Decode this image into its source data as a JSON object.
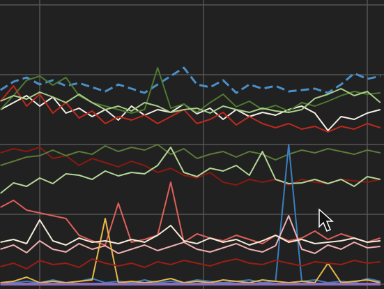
{
  "chart_data": {
    "type": "line",
    "x": [
      0.76,
      0.84,
      0.92,
      1.0,
      1.08,
      1.16,
      1.24,
      1.32,
      1.4,
      1.48,
      1.56,
      1.64,
      1.72,
      1.8,
      1.88,
      1.96,
      2.04,
      2.12,
      2.2,
      2.28,
      2.36,
      2.44,
      2.52,
      2.6,
      2.68,
      2.76,
      2.84,
      2.92,
      3.0,
      3.08
    ],
    "xlim": [
      0.7574,
      3.102
    ],
    "xticks": [
      1,
      2,
      3
    ],
    "ylim": [
      -0.07,
      4.07
    ],
    "yticks": [
      0,
      1,
      2,
      3,
      4
    ],
    "grid": true,
    "background": "#212121",
    "grid_color": "#555555",
    "series": [
      {
        "color": "#4a90c8",
        "dashed": true,
        "width": 3,
        "values": [
          2.78,
          2.9,
          2.96,
          2.86,
          2.92,
          2.84,
          2.88,
          2.82,
          2.76,
          2.86,
          2.8,
          2.74,
          2.86,
          2.98,
          3.1,
          2.86,
          2.82,
          2.92,
          2.74,
          2.86,
          2.8,
          2.84,
          2.76,
          2.78,
          2.8,
          2.74,
          2.86,
          3.02,
          2.94,
          2.98
        ]
      },
      {
        "color": "#f5f0e6",
        "values": [
          2.5,
          2.6,
          2.7,
          2.55,
          2.68,
          2.45,
          2.52,
          2.4,
          2.5,
          2.35,
          2.55,
          2.42,
          2.5,
          2.46,
          2.58,
          2.44,
          2.52,
          2.36,
          2.5,
          2.4,
          2.46,
          2.42,
          2.5,
          2.55,
          2.45,
          2.2,
          2.4,
          2.36,
          2.45,
          2.5
        ]
      },
      {
        "color": "#c0281c",
        "values": [
          2.62,
          2.84,
          2.55,
          2.72,
          2.45,
          2.6,
          2.38,
          2.48,
          2.3,
          2.4,
          2.35,
          2.42,
          2.3,
          2.4,
          2.5,
          2.3,
          2.36,
          2.46,
          2.28,
          2.4,
          2.3,
          2.24,
          2.3,
          2.22,
          2.26,
          2.18,
          2.26,
          2.22,
          2.3,
          2.24
        ]
      },
      {
        "color": "#4e7a2e",
        "values": [
          2.5,
          2.7,
          2.92,
          2.98,
          2.85,
          2.96,
          2.7,
          2.6,
          2.55,
          2.5,
          2.45,
          2.5,
          3.1,
          2.52,
          2.58,
          2.46,
          2.6,
          2.72,
          2.54,
          2.62,
          2.5,
          2.56,
          2.48,
          2.6,
          2.55,
          2.62,
          2.7,
          2.76,
          2.72,
          2.74
        ]
      },
      {
        "color": "#a8cf88",
        "values": [
          2.62,
          2.7,
          2.65,
          2.75,
          2.68,
          2.6,
          2.72,
          2.6,
          2.5,
          2.55,
          2.48,
          2.6,
          2.55,
          2.46,
          2.5,
          2.52,
          2.45,
          2.55,
          2.5,
          2.46,
          2.52,
          2.48,
          2.46,
          2.5,
          2.66,
          2.72,
          2.8,
          2.7,
          2.76,
          2.6
        ]
      },
      {
        "color": "#8a1a10",
        "values": [
          1.88,
          1.94,
          1.9,
          1.96,
          1.8,
          1.84,
          1.7,
          1.8,
          1.74,
          1.68,
          1.76,
          1.7,
          1.6,
          1.66,
          1.56,
          1.52,
          1.6,
          1.46,
          1.42,
          1.5,
          1.46,
          1.5,
          1.42,
          1.5,
          1.46,
          1.44,
          1.5,
          1.48,
          1.46,
          1.5
        ]
      },
      {
        "color": "#5c7a3a",
        "values": [
          1.7,
          1.76,
          1.82,
          1.84,
          1.92,
          1.84,
          1.9,
          1.86,
          1.98,
          1.9,
          1.96,
          1.92,
          2.0,
          1.86,
          1.94,
          1.8,
          1.86,
          1.9,
          1.82,
          1.9,
          1.86,
          1.78,
          1.86,
          1.92,
          1.88,
          1.94,
          1.9,
          1.86,
          1.92,
          1.88
        ]
      },
      {
        "color": "#b5d698",
        "values": [
          1.3,
          1.45,
          1.4,
          1.52,
          1.44,
          1.58,
          1.56,
          1.5,
          1.62,
          1.55,
          1.6,
          1.58,
          1.7,
          1.96,
          1.6,
          1.54,
          1.66,
          1.62,
          1.7,
          1.56,
          1.9,
          1.5,
          1.44,
          1.45,
          1.5,
          1.44,
          1.5,
          1.4,
          1.54,
          1.5
        ]
      },
      {
        "color": "#e0605a",
        "values": [
          1.1,
          1.2,
          1.06,
          1.02,
          0.98,
          0.94,
          0.7,
          0.62,
          0.56,
          1.16,
          0.6,
          0.64,
          0.7,
          1.46,
          0.6,
          0.72,
          0.66,
          0.62,
          0.7,
          0.64,
          0.58,
          0.7,
          0.62,
          0.66,
          0.76,
          0.64,
          0.72,
          0.66,
          0.6,
          0.66
        ]
      },
      {
        "color": "#3a80c0",
        "values": [
          0.02,
          0.02,
          0.04,
          0.02,
          0.06,
          0.02,
          0.04,
          0.08,
          0.02,
          0.04,
          0.02,
          0.06,
          0.02,
          0.04,
          0.02,
          0.06,
          0.04,
          0.02,
          0.04,
          0.06,
          0.02,
          0.04,
          2.0,
          0.04,
          0.06,
          0.02,
          0.04,
          0.02,
          0.08,
          0.04
        ]
      },
      {
        "color": "#f0b0b0",
        "values": [
          0.5,
          0.56,
          0.45,
          0.62,
          0.5,
          0.46,
          0.58,
          0.5,
          0.55,
          0.44,
          0.5,
          0.56,
          0.48,
          0.54,
          0.6,
          0.5,
          0.46,
          0.52,
          0.58,
          0.5,
          0.46,
          0.55,
          0.98,
          0.5,
          0.44,
          0.56,
          0.5,
          0.6,
          0.52,
          0.54
        ]
      },
      {
        "color": "#e8b84a",
        "values": [
          0.02,
          0.04,
          0.1,
          0.02,
          0.04,
          0.02,
          0.04,
          0.06,
          0.94,
          0.02,
          0.04,
          0.02,
          0.04,
          0.08,
          0.02,
          0.04,
          0.02,
          0.06,
          0.04,
          0.02,
          0.06,
          0.04,
          0.02,
          0.04,
          0.02,
          0.3,
          0.02,
          0.04,
          0.06,
          0.02
        ]
      },
      {
        "color": "#f4ecd8",
        "values": [
          0.6,
          0.64,
          0.58,
          0.92,
          0.62,
          0.56,
          0.66,
          0.6,
          0.62,
          0.58,
          0.64,
          0.6,
          0.7,
          0.84,
          0.62,
          0.58,
          0.66,
          0.6,
          0.64,
          0.56,
          0.62,
          0.7,
          0.6,
          0.64,
          0.58,
          0.6,
          0.62,
          0.66,
          0.6,
          0.62
        ]
      },
      {
        "color": "#9a1e14",
        "values": [
          0.25,
          0.3,
          0.22,
          0.34,
          0.28,
          0.3,
          0.24,
          0.36,
          0.3,
          0.26,
          0.3,
          0.24,
          0.32,
          0.28,
          0.34,
          0.3,
          0.26,
          0.32,
          0.36,
          0.3,
          0.28,
          0.34,
          0.3,
          0.26,
          0.32,
          0.3,
          0.28,
          0.34,
          0.3,
          0.32
        ]
      },
      {
        "color": "#8e6cb8",
        "width": 4,
        "values": [
          0,
          0,
          0,
          0,
          0,
          0,
          0,
          0,
          0,
          0,
          0,
          0,
          0,
          0,
          0,
          0,
          0,
          0,
          0,
          0,
          0,
          0,
          0,
          0,
          0,
          0,
          0,
          0,
          0,
          0
        ]
      }
    ]
  }
}
